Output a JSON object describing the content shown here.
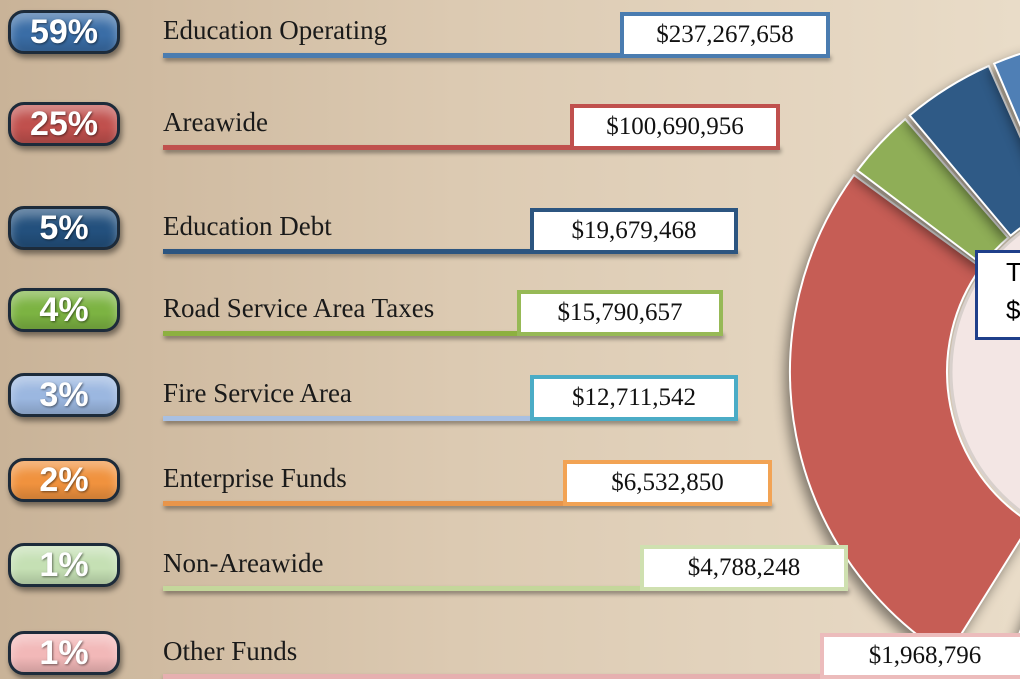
{
  "rows": [
    {
      "percent": "59%",
      "label": "Education Operating",
      "amount": "$237,267,658"
    },
    {
      "percent": "25%",
      "label": "Areawide",
      "amount": "$100,690,956"
    },
    {
      "percent": "5%",
      "label": "Education Debt",
      "amount": "$19,679,468"
    },
    {
      "percent": "4%",
      "label": "Road Service Area Taxes",
      "amount": "$15,790,657"
    },
    {
      "percent": "3%",
      "label": "Fire Service Area",
      "amount": "$12,711,542"
    },
    {
      "percent": "2%",
      "label": "Enterprise Funds",
      "amount": "$6,532,850"
    },
    {
      "percent": "1%",
      "label": "Non-Areawide",
      "amount": "$4,788,248"
    },
    {
      "percent": "1%",
      "label": "Other Funds",
      "amount": "$1,968,796"
    }
  ],
  "center": {
    "title": "T",
    "amount": "$"
  }
}
